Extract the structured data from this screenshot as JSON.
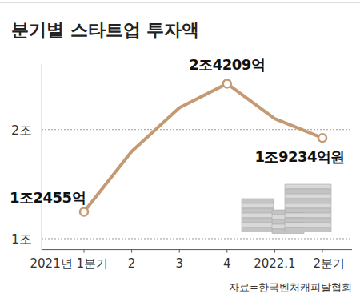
{
  "chart_data": {
    "type": "line",
    "title": "분기별 스타트업 투자액",
    "source": "자료=한국벤처캐피탈협회",
    "categories": [
      "2021년 1분기",
      "2",
      "3",
      "4",
      "2022.1",
      "2분기"
    ],
    "values": [
      1.2455,
      1.8,
      2.2,
      2.4209,
      2.1,
      1.9234
    ],
    "value_labels": [
      "1조2455억",
      null,
      null,
      "2조4209억",
      null,
      "1조9234억원"
    ],
    "data_labels": true,
    "color": "#c49a74",
    "marker": "circle",
    "ylim": [
      0.9,
      2.6
    ],
    "yticks": [
      {
        "value": 1,
        "label": "1조"
      },
      {
        "value": 2,
        "label": "2조"
      }
    ],
    "grid": true
  }
}
